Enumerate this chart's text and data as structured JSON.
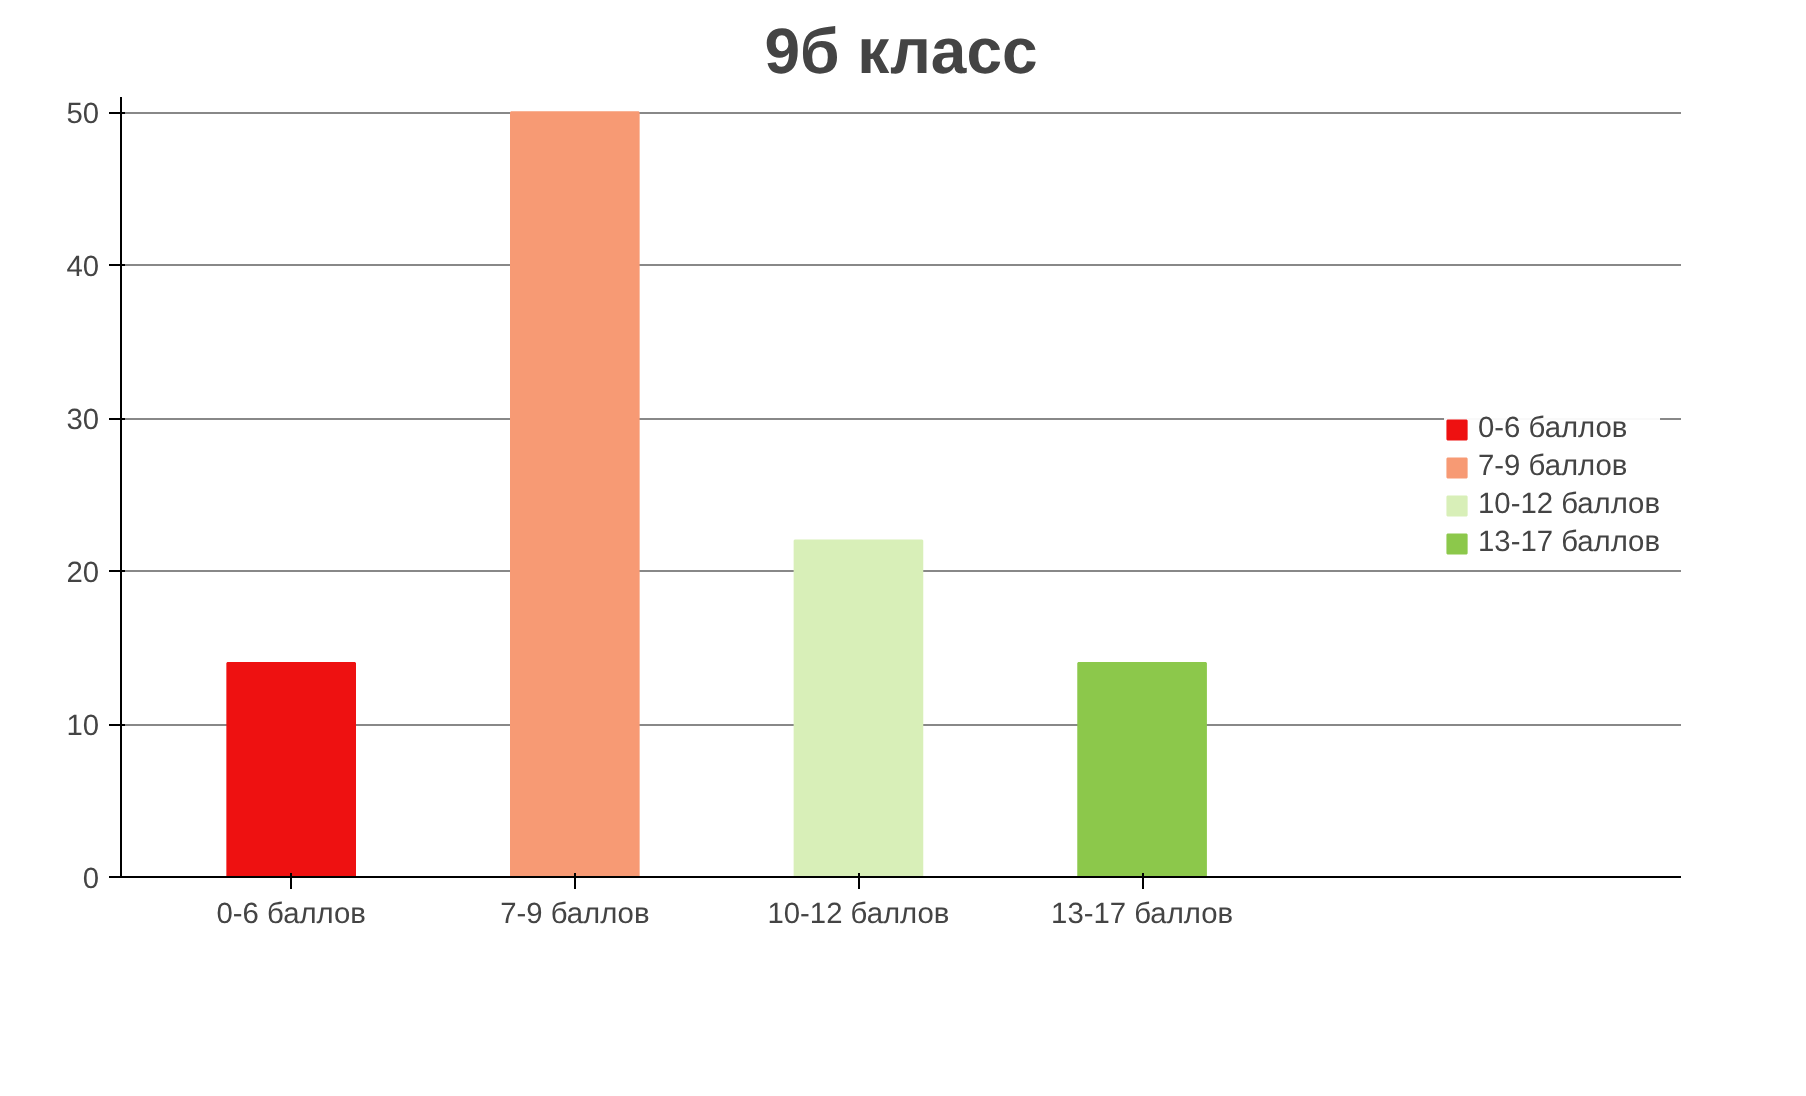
{
  "chart_data": {
    "type": "bar",
    "title": "9б класс",
    "categories": [
      "0-6 баллов",
      "7-9 баллов",
      "10-12 баллов",
      "13-17 баллов"
    ],
    "series": [
      {
        "name": "0-6 баллов",
        "color": "#ee1111",
        "values": [
          14,
          null,
          null,
          null
        ]
      },
      {
        "name": "7-9 баллов",
        "color": "#f79a74",
        "values": [
          null,
          50,
          null,
          null
        ]
      },
      {
        "name": "10-12 баллов",
        "color": "#d8efb8",
        "values": [
          null,
          null,
          22,
          null
        ]
      },
      {
        "name": "13-17 баллов",
        "color": "#8cc84b",
        "values": [
          null,
          null,
          null,
          14
        ]
      }
    ],
    "ylim": [
      0,
      50
    ],
    "yticks": [
      0,
      10,
      20,
      30,
      40,
      50
    ],
    "grid": "y",
    "legend": "right"
  }
}
